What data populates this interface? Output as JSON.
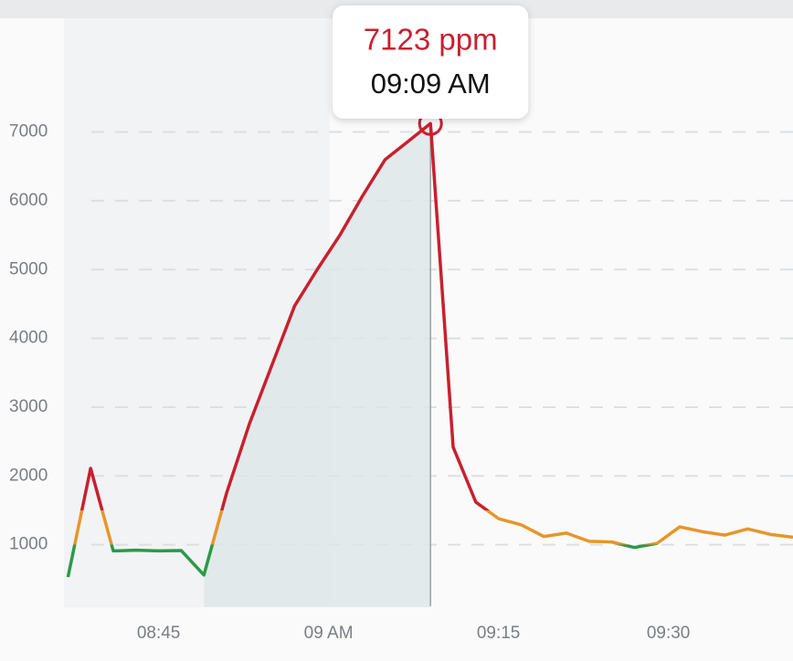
{
  "chart_data": {
    "type": "line",
    "x": [
      "08:37",
      "08:39",
      "08:41",
      "08:43",
      "08:45",
      "08:47",
      "08:49",
      "08:51",
      "08:53",
      "08:55",
      "08:57",
      "08:59",
      "09:01",
      "09:03",
      "09:05",
      "09:07",
      "09:09",
      "09:11",
      "09:13",
      "09:15",
      "09:17",
      "09:19",
      "09:21",
      "09:23",
      "09:25",
      "09:27",
      "09:29",
      "09:31",
      "09:33",
      "09:35",
      "09:37",
      "09:39",
      "09:41"
    ],
    "values": [
      530,
      2110,
      910,
      920,
      910,
      915,
      560,
      1750,
      2750,
      3610,
      4470,
      5000,
      5500,
      6070,
      6600,
      6860,
      7123,
      2420,
      1620,
      1380,
      1290,
      1120,
      1170,
      1050,
      1040,
      960,
      1020,
      1260,
      1190,
      1140,
      1230,
      1150,
      1110
    ],
    "value_labels": [
      null,
      null,
      null,
      null,
      null,
      null,
      null,
      null,
      null,
      null,
      null,
      null,
      null,
      null,
      null,
      null,
      "7123 ppm",
      null,
      null,
      null,
      null,
      null,
      null,
      null,
      null,
      null,
      null,
      null,
      null,
      null,
      null,
      null,
      null
    ],
    "highlight_time": "09:09 AM",
    "xlim": [
      "08:31",
      "09:41"
    ],
    "xticks": [
      "08:45",
      {
        "value": "09:00",
        "label": "09 AM"
      },
      "09:15",
      "09:30"
    ],
    "ylim": [
      0,
      8600
    ],
    "yticks": [
      1000,
      2000,
      3000,
      4000,
      5000,
      6000,
      7000
    ],
    "grid": true,
    "color_bands": [
      {
        "max": 1000,
        "color": "#2a9a47"
      },
      {
        "max": 1500,
        "color": "#e8952a"
      },
      {
        "color": "#c8202f"
      }
    ],
    "area_color": "#dde6e8"
  }
}
